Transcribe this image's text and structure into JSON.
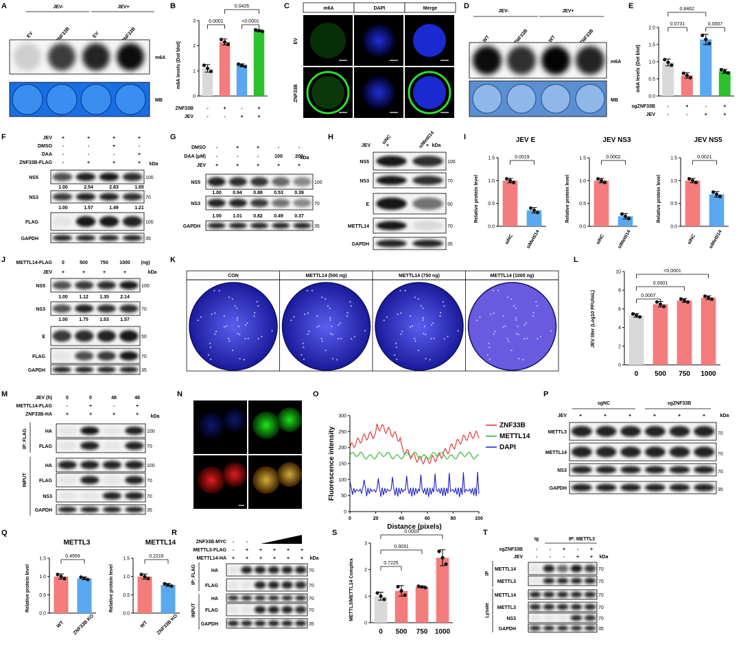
{
  "letters": [
    "A",
    "B",
    "C",
    "D",
    "E",
    "F",
    "G",
    "H",
    "I",
    "J",
    "K",
    "L",
    "M",
    "N",
    "O",
    "P",
    "Q",
    "R",
    "S",
    "T"
  ],
  "A": {
    "groups": [
      "JEV-",
      "JEV+"
    ],
    "lanes": [
      "EV",
      "ZNF33B",
      "EV",
      "ZNF33B"
    ],
    "labels": [
      "m6A",
      "MB"
    ]
  },
  "B": {
    "ylabel": "m6A levels (Dot blot)",
    "yticks": [
      "0",
      "1",
      "2",
      "3"
    ],
    "row1": "ZNF33B",
    "row2": "JEV",
    "signs1": [
      "-",
      "+",
      "-",
      "+"
    ],
    "signs2": [
      "-",
      "-",
      "+",
      "+"
    ],
    "p": [
      "0.0426",
      "0.0001",
      "<0.0001"
    ]
  },
  "C": {
    "cols": [
      "m6A",
      "DAPI",
      "Merge"
    ],
    "rows": [
      "EV",
      "ZNF33B"
    ]
  },
  "D": {
    "groups": [
      "JEV-",
      "JEV+"
    ],
    "lanes": [
      "WT",
      "sgZNF33B",
      "WT",
      "sgZNF33B"
    ],
    "labels": [
      "m6A",
      "MB"
    ]
  },
  "E": {
    "ylabel": "m6A levels (Dot blot)",
    "yticks": [
      "0.0",
      "0.5",
      "1.0",
      "1.5",
      "2.0"
    ],
    "row1": "sgZNF33B",
    "row2": "JEV",
    "signs1": [
      "-",
      "+",
      "-",
      "+"
    ],
    "signs2": [
      "-",
      "-",
      "+",
      "+"
    ],
    "p": [
      "0.8462",
      "0.0731",
      "0.0007"
    ]
  },
  "F": {
    "rows": [
      "JEV",
      "DMSO",
      "DAA",
      "ZNF33B-FLAG"
    ],
    "signs": [
      [
        "+",
        "+",
        "+",
        "+"
      ],
      [
        "-",
        "-",
        "+",
        "-"
      ],
      [
        "-",
        "-",
        "-",
        "+"
      ],
      [
        "-",
        "+",
        "+",
        "+"
      ]
    ],
    "blots": [
      "NS5",
      "NS3",
      "FLAG",
      "GAPDH"
    ],
    "kda": "kDa",
    "mw": [
      "100",
      "70",
      "100",
      "35"
    ],
    "q1": [
      "1.00",
      "2.54",
      "2.83",
      "1.65"
    ],
    "q2": [
      "1.00",
      "1.57",
      "1.49",
      "1.21"
    ]
  },
  "G": {
    "rows": [
      "DMSO",
      "DAA (μM)",
      "JEV"
    ],
    "signs": [
      [
        "-",
        "+",
        "+",
        "-",
        "-"
      ],
      [
        "-",
        "-",
        "-",
        "100",
        "200"
      ],
      [
        "+",
        "+",
        "+",
        "+",
        "+"
      ]
    ],
    "blots": [
      "NS5",
      "NS3",
      "GAPDH"
    ],
    "kda": "kDa",
    "mw": [
      "100",
      "70",
      "35"
    ],
    "q1": [
      "1.00",
      "0.94",
      "0.88",
      "0.53",
      "0.39"
    ],
    "q2": [
      "1.00",
      "1.01",
      "0.82",
      "0.49",
      "0.37"
    ]
  },
  "H": {
    "lanes": [
      "siNC",
      "siMettl14"
    ],
    "jev": "JEV",
    "signs": [
      "+",
      "+"
    ],
    "kda": "kDa",
    "blots": [
      "NS5",
      "NS3",
      "E",
      "METTL14",
      "GAPDH"
    ],
    "mw": [
      "100",
      "70",
      "50",
      "70",
      "35"
    ]
  },
  "I": {
    "ylabel": "Relative protein level",
    "charts": [
      {
        "title": "JEV E",
        "p": "0.0019"
      },
      {
        "title": "JEV NS3",
        "p": "0.0002"
      },
      {
        "title": "JEV NS5",
        "p": "0.0021"
      }
    ],
    "xlabels": [
      "siNC",
      "siMettl14"
    ],
    "yticks": [
      "0.0",
      "0.5",
      "1.0",
      "1.5"
    ]
  },
  "J": {
    "rows": [
      "METTL14-FLAG",
      "JEV"
    ],
    "vals": [
      "0",
      "500",
      "750",
      "1000"
    ],
    "unit": "(ng)",
    "signs": [
      "+",
      "+",
      "+",
      "+"
    ],
    "blots": [
      "NS5",
      "NS3",
      "E",
      "FLAG",
      "GAPDH"
    ],
    "mw": [
      "100",
      "70",
      "50",
      "70",
      "35"
    ],
    "kda": "kDa",
    "q1": [
      "1.00",
      "1.12",
      "1.35",
      "2.14"
    ],
    "q2": [
      "1.00",
      "1.75",
      "1.53",
      "1.57"
    ]
  },
  "K": {
    "plates": [
      "CON",
      "METTL14 (500 ng)",
      "METTL14 (750 ng)",
      "METTL14 (1000 ng)"
    ]
  },
  "L": {
    "ylabel": "JEV titer (Log10 PFU/mL)",
    "yticks": [
      "0",
      "2",
      "4",
      "6",
      "8",
      "10"
    ],
    "x": [
      "0",
      "500",
      "750",
      "1000"
    ],
    "p": [
      "<0.0001",
      "0.0001",
      "0.0007"
    ]
  },
  "M": {
    "rows": [
      "JEV (h)",
      "METTL14-FLAG",
      "ZNF33B-HA"
    ],
    "signs": [
      [
        "0",
        "0",
        "48",
        "48"
      ],
      [
        "-",
        "+",
        "-",
        "+"
      ],
      [
        "+",
        "+",
        "+",
        "+"
      ]
    ],
    "ip": "IP: FLAG",
    "input": "INPUT",
    "blots": [
      "HA",
      "FLAG",
      "HA",
      "FLAG",
      "NS3",
      "GAPDH"
    ],
    "mw": [
      "100",
      "70",
      "100",
      "70",
      "70",
      "35"
    ],
    "kda": "kDa"
  },
  "N": {
    "labels": [
      "DAPI",
      "METTL14",
      "ZNF33B",
      "Merge"
    ]
  },
  "O": {
    "ylabel": "Fluorescence intensity",
    "xlabel": "Distance (pixels)",
    "yticks": [
      "0",
      "50",
      "100",
      "150",
      "200",
      "250",
      "300"
    ],
    "xticks": [
      "0",
      "20",
      "40",
      "60",
      "80",
      "100"
    ],
    "legend": [
      "ZNF33B",
      "METTL14",
      "DAPI"
    ],
    "colors": [
      "#e8292a",
      "#22b522",
      "#1c1cc8"
    ]
  },
  "P": {
    "groups": [
      "sgNC",
      "sgZNF33B"
    ],
    "jev": "JEV",
    "signs": [
      "+",
      "+",
      "+",
      "+",
      "+",
      "+"
    ],
    "blots": [
      "METTL3",
      "METTL14",
      "NS3",
      "GAPDH"
    ],
    "mw": [
      "70",
      "70",
      "70",
      "35"
    ],
    "kda": "kDa"
  },
  "Q": {
    "ylabel": "Relative protein level",
    "yticks": [
      "0.0",
      "0.5",
      "1.0",
      "1.5"
    ],
    "xlabels": [
      "WT",
      "ZNF33B KO"
    ],
    "charts": [
      {
        "title": "METTL3",
        "p": "0.4959"
      },
      {
        "title": "METTL14",
        "p": "0.2216"
      }
    ]
  },
  "R": {
    "rows": [
      "ZNF33B-MYC",
      "METTL3-FLAG",
      "METTL14-HA"
    ],
    "signs": [
      [
        "-",
        "-",
        "",
        "",
        "",
        ""
      ],
      [
        "-",
        "+",
        "+",
        "+",
        "+",
        "+"
      ],
      [
        "+",
        "+",
        "+",
        "+",
        "+",
        "+"
      ]
    ],
    "ip": "IP: FLAG",
    "input": "INPUT",
    "blots": [
      "HA",
      "FLAG",
      "HA",
      "FLAG",
      "GAPDH"
    ],
    "mw": [
      "70",
      "70",
      "70",
      "70",
      "35"
    ],
    "kda": "kDa"
  },
  "S": {
    "ylabel": "METTL3/METTL14 Complex",
    "yticks": [
      "0",
      "1",
      "2",
      "3"
    ],
    "x": [
      "0",
      "500",
      "750",
      "1000"
    ],
    "p": [
      "0.0003",
      "0.3031",
      "0.7225"
    ]
  },
  "T": {
    "ig": "Ig",
    "ipl": "IP: METTL3",
    "rows": [
      "sgZNF33B",
      "JEV"
    ],
    "signs": [
      [
        "-",
        "-",
        "+",
        "-",
        "+"
      ],
      [
        "-",
        "-",
        "-",
        "+",
        "+"
      ]
    ],
    "blots": [
      "METTL14",
      "METTL3",
      "METTL14",
      "METTL3",
      "NS3",
      "GAPDH"
    ],
    "mw": [
      "70",
      "70",
      "70",
      "70",
      "70",
      "35"
    ],
    "kda": "kDa",
    "ipside": "IP",
    "lysate": "Lysate"
  },
  "chart_data": [
    {
      "panel": "B",
      "type": "bar",
      "categories": [
        "1",
        "2",
        "3",
        "4"
      ],
      "values": [
        1.1,
        2.15,
        1.22,
        2.6
      ],
      "ylim": [
        0,
        3
      ],
      "colors": [
        "#d9d9d9",
        "#f47c7c",
        "#5aa9f0",
        "#2ec12e"
      ]
    },
    {
      "panel": "E",
      "type": "bar",
      "categories": [
        "1",
        "2",
        "3",
        "4"
      ],
      "values": [
        0.98,
        0.6,
        1.65,
        0.72
      ],
      "ylim": [
        0,
        2
      ],
      "colors": [
        "#d9d9d9",
        "#f47c7c",
        "#5aa9f0",
        "#2ec12e"
      ]
    },
    {
      "panel": "I-E",
      "type": "bar",
      "categories": [
        "siNC",
        "siMettl14"
      ],
      "values": [
        1.0,
        0.35
      ],
      "ylim": [
        0,
        1.5
      ]
    },
    {
      "panel": "I-NS3",
      "type": "bar",
      "categories": [
        "siNC",
        "siMettl14"
      ],
      "values": [
        1.0,
        0.22
      ],
      "ylim": [
        0,
        1.5
      ]
    },
    {
      "panel": "I-NS5",
      "type": "bar",
      "categories": [
        "siNC",
        "siMettl14"
      ],
      "values": [
        1.0,
        0.7
      ],
      "ylim": [
        0,
        1.5
      ]
    },
    {
      "panel": "L",
      "type": "bar",
      "categories": [
        "0",
        "500",
        "750",
        "1000"
      ],
      "values": [
        5.3,
        6.5,
        6.9,
        7.2
      ],
      "ylim": [
        0,
        10
      ]
    },
    {
      "panel": "Q-METTL3",
      "type": "bar",
      "categories": [
        "WT",
        "ZNF33B KO"
      ],
      "values": [
        1.0,
        0.95
      ],
      "ylim": [
        0,
        1.5
      ]
    },
    {
      "panel": "Q-METTL14",
      "type": "bar",
      "categories": [
        "WT",
        "ZNF33B KO"
      ],
      "values": [
        1.0,
        0.77
      ],
      "ylim": [
        0,
        1.5
      ]
    },
    {
      "panel": "S",
      "type": "bar",
      "categories": [
        "0",
        "500",
        "750",
        "1000"
      ],
      "values": [
        1.0,
        1.2,
        1.35,
        2.45
      ],
      "ylim": [
        0,
        3
      ]
    }
  ]
}
